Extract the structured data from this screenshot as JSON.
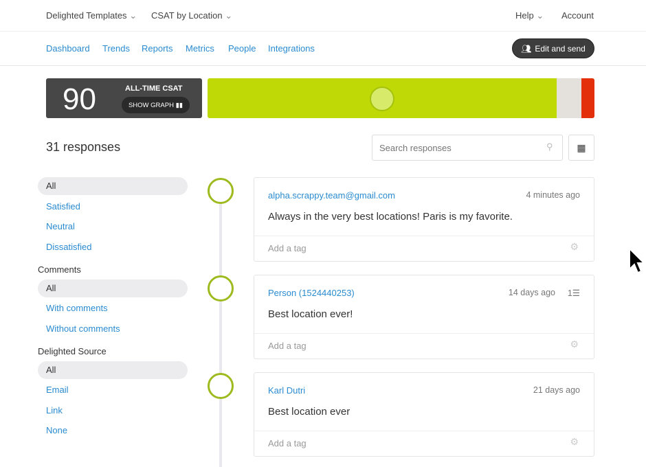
{
  "top": {
    "templates": "Delighted Templates",
    "survey": "CSAT by Location",
    "help": "Help",
    "account": "Account"
  },
  "nav": {
    "items": [
      "Dashboard",
      "Trends",
      "Reports",
      "Metrics",
      "People",
      "Integrations"
    ],
    "edit_send": "Edit and send"
  },
  "score": {
    "value": "90",
    "label": "ALL-TIME CSAT",
    "show_graph": "SHOW GRAPH"
  },
  "distribution": [
    {
      "segment": "satisfied",
      "percent": 90.2,
      "color": "#bed905"
    },
    {
      "segment": "neutral",
      "percent": 6.4,
      "color": "#e4e0dc"
    },
    {
      "segment": "dissatisfied",
      "percent": 3.4,
      "color": "#e3300a"
    }
  ],
  "responses": {
    "count": "31 responses",
    "search_placeholder": "Search responses"
  },
  "filters": {
    "rating": [
      "All",
      "Satisfied",
      "Neutral",
      "Dissatisfied"
    ],
    "comments_title": "Comments",
    "comments": [
      "All",
      "With comments",
      "Without comments"
    ],
    "source_title": "Delighted Source",
    "source": [
      "All",
      "Email",
      "Link",
      "None"
    ]
  },
  "cards": [
    {
      "who": "alpha.scrappy.team@gmail.com",
      "when": "4 minutes ago",
      "text": "Always in the very best locations! Paris is my favorite.",
      "tag": "Add a tag"
    },
    {
      "who": "Person (1524440253)",
      "when": "14 days ago",
      "extra": "1",
      "text": "Best location ever!",
      "tag": "Add a tag"
    },
    {
      "who": "Karl Dutri",
      "when": "21 days ago",
      "text": "Best location ever",
      "tag": "Add a tag"
    }
  ]
}
